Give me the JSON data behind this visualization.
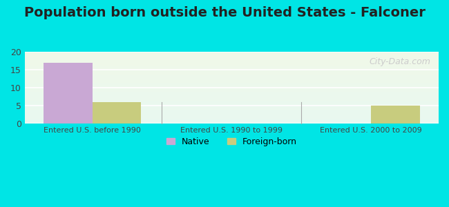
{
  "title": "Population born outside the United States - Falconer",
  "categories": [
    "Entered U.S. before 1990",
    "Entered U.S. 1990 to 1999",
    "Entered U.S. 2000 to 2009"
  ],
  "native_values": [
    17,
    0,
    0
  ],
  "foreign_values": [
    6,
    0,
    5
  ],
  "native_color": "#c9a8d4",
  "foreign_color": "#c8cc7e",
  "ylim": [
    0,
    20
  ],
  "yticks": [
    0,
    5,
    10,
    15,
    20
  ],
  "background_outer": "#00e5e5",
  "background_inner_top": "#f0f8e8",
  "background_inner_bottom": "#e8f8f0",
  "title_fontsize": 14,
  "bar_width": 0.35,
  "watermark": "City-Data.com",
  "legend_native": "Native",
  "legend_foreign": "Foreign-born"
}
